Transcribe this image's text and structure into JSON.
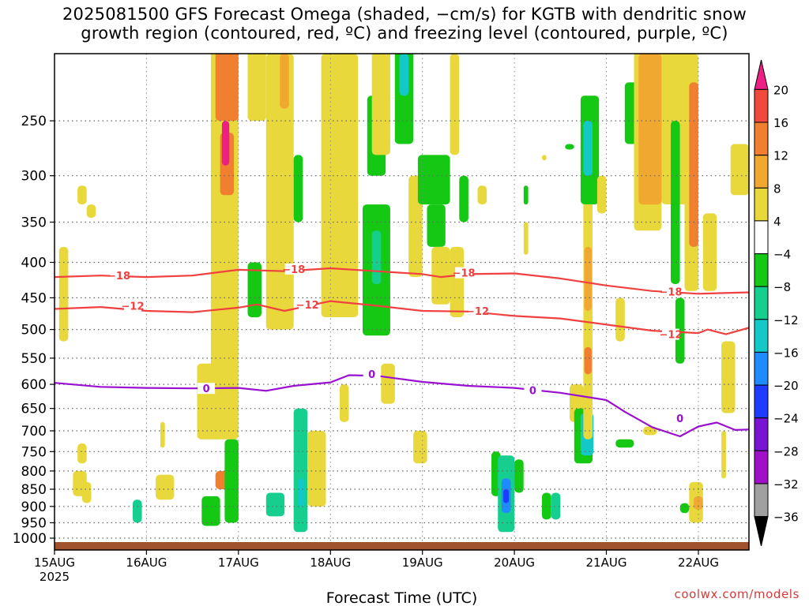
{
  "title_line1": "2025081500 GFS Forecast Omega (shaded, −cm/s) for KGTB with dendritic snow",
  "title_line2": "growth region (contoured, red, ºC) and freezing level (contoured, purple, ºC)",
  "credit": "coolwx.com/models",
  "chart_data": {
    "type": "heatmap",
    "xlabel": "Forecast Time (UTC)",
    "x_ticks": [
      "15AUG",
      "16AUG",
      "17AUG",
      "18AUG",
      "19AUG",
      "20AUG",
      "21AUG",
      "22AUG"
    ],
    "x_year_label": "2025",
    "x_range_days": [
      0,
      7.55
    ],
    "y_scale": "log-pressure (hPa)",
    "y_range_hpa": [
      1040,
      200
    ],
    "y_ticks": [
      250,
      300,
      350,
      400,
      450,
      500,
      550,
      600,
      650,
      700,
      750,
      800,
      850,
      900,
      950,
      1000
    ],
    "grid": true,
    "colorbar": {
      "labels": [
        "20",
        "16",
        "12",
        "8",
        "4",
        "−4",
        "−8",
        "−12",
        "−16",
        "−20",
        "−24",
        "−28",
        "−32",
        "−36"
      ],
      "colors": [
        "#ec1f84",
        "#f04a3c",
        "#f08030",
        "#f0a830",
        "#e8d83c",
        "#ffffff",
        "#14c814",
        "#16cf8e",
        "#14c8c8",
        "#1e8cff",
        "#1e3cff",
        "#7814d2",
        "#a010c8",
        "#a0a0a0",
        "#000000"
      ]
    },
    "ground_color": "#a0522d",
    "dgz_contours": [
      {
        "label": "−18",
        "color": "#f04040",
        "points": [
          [
            0,
            420
          ],
          [
            0.5,
            418
          ],
          [
            1,
            420
          ],
          [
            1.5,
            418
          ],
          [
            2,
            410
          ],
          [
            2.5,
            412
          ],
          [
            3,
            408
          ],
          [
            3.5,
            412
          ],
          [
            4,
            416
          ],
          [
            4.2,
            420
          ],
          [
            4.5,
            416
          ],
          [
            5,
            415
          ],
          [
            5.5,
            422
          ],
          [
            6,
            432
          ],
          [
            6.5,
            440
          ],
          [
            7,
            444
          ],
          [
            7.55,
            442
          ]
        ],
        "label_positions": [
          [
            0.7,
            418
          ],
          [
            2.6,
            409
          ],
          [
            4.45,
            414
          ],
          [
            6.7,
            441
          ]
        ]
      },
      {
        "label": "−12",
        "color": "#f04040",
        "points": [
          [
            0,
            467
          ],
          [
            0.5,
            464
          ],
          [
            1,
            470
          ],
          [
            1.5,
            472
          ],
          [
            2,
            465
          ],
          [
            2.2,
            460
          ],
          [
            2.5,
            470
          ],
          [
            3,
            455
          ],
          [
            3.5,
            462
          ],
          [
            4,
            470
          ],
          [
            4.5,
            471
          ],
          [
            5,
            478
          ],
          [
            5.5,
            482
          ],
          [
            6,
            492
          ],
          [
            6.5,
            502
          ],
          [
            7,
            506
          ],
          [
            7.1,
            500
          ],
          [
            7.3,
            508
          ],
          [
            7.55,
            497
          ]
        ],
        "label_positions": [
          [
            0.85,
            462
          ],
          [
            2.75,
            460
          ],
          [
            4.6,
            470
          ],
          [
            6.7,
            508
          ]
        ]
      }
    ],
    "freezing_level": {
      "label": "0",
      "color": "#9a10d0",
      "points": [
        [
          0,
          597
        ],
        [
          0.5,
          605
        ],
        [
          1,
          607
        ],
        [
          1.5,
          608
        ],
        [
          2,
          607
        ],
        [
          2.3,
          613
        ],
        [
          2.6,
          603
        ],
        [
          3,
          596
        ],
        [
          3.2,
          582
        ],
        [
          3.5,
          583
        ],
        [
          4,
          595
        ],
        [
          4.5,
          603
        ],
        [
          5,
          607
        ],
        [
          5.5,
          617
        ],
        [
          6,
          632
        ],
        [
          6.2,
          657
        ],
        [
          6.5,
          692
        ],
        [
          6.8,
          713
        ],
        [
          7,
          690
        ],
        [
          7.2,
          681
        ],
        [
          7.4,
          698
        ],
        [
          7.55,
          697
        ]
      ],
      "label_positions": [
        [
          1.65,
          608
        ],
        [
          3.45,
          580
        ],
        [
          5.2,
          612
        ],
        [
          6.8,
          671
        ]
      ]
    },
    "omega_regions": [
      {
        "t0": 0.05,
        "t1": 0.15,
        "p0": 380,
        "p1": 520,
        "v": 5
      },
      {
        "t0": 0.25,
        "t1": 0.35,
        "p0": 310,
        "p1": 330,
        "v": 5
      },
      {
        "t0": 0.35,
        "t1": 0.45,
        "p0": 330,
        "p1": 345,
        "v": 5
      },
      {
        "t0": 0.25,
        "t1": 0.35,
        "p0": 730,
        "p1": 780,
        "v": 5
      },
      {
        "t0": 0.3,
        "t1": 0.4,
        "p0": 830,
        "p1": 890,
        "v": 5
      },
      {
        "t0": 0.2,
        "t1": 0.35,
        "p0": 800,
        "p1": 870,
        "v": 5
      },
      {
        "t0": 0.85,
        "t1": 0.95,
        "p0": 880,
        "p1": 950,
        "v": -8
      },
      {
        "t0": 1.1,
        "t1": 1.3,
        "p0": 810,
        "p1": 880,
        "v": 5
      },
      {
        "t0": 1.15,
        "t1": 1.2,
        "p0": 680,
        "p1": 740,
        "v": 5
      },
      {
        "t0": 1.55,
        "t1": 1.8,
        "p0": 560,
        "p1": 720,
        "v": 5
      },
      {
        "t0": 1.7,
        "t1": 2.0,
        "p0": 100,
        "p1": 720,
        "v": 6
      },
      {
        "t0": 1.75,
        "t1": 2.0,
        "p0": 120,
        "p1": 250,
        "v": 12
      },
      {
        "t0": 1.8,
        "t1": 1.95,
        "p0": 260,
        "p1": 320,
        "v": 12
      },
      {
        "t0": 1.82,
        "t1": 1.9,
        "p0": 250,
        "p1": 290,
        "v": 20
      },
      {
        "t0": 1.75,
        "t1": 2.0,
        "p0": 800,
        "p1": 850,
        "v": 12
      },
      {
        "t0": 1.85,
        "t1": 2.0,
        "p0": 720,
        "p1": 950,
        "v": -6
      },
      {
        "t0": 1.6,
        "t1": 1.8,
        "p0": 870,
        "p1": 960,
        "v": -7
      },
      {
        "t0": 2.1,
        "t1": 2.25,
        "p0": 400,
        "p1": 480,
        "v": -6
      },
      {
        "t0": 2.1,
        "t1": 2.3,
        "p0": 150,
        "p1": 250,
        "v": 6
      },
      {
        "t0": 2.3,
        "t1": 2.6,
        "p0": 200,
        "p1": 500,
        "v": 5
      },
      {
        "t0": 2.45,
        "t1": 2.55,
        "p0": 200,
        "p1": 240,
        "v": 9
      },
      {
        "t0": 2.6,
        "t1": 2.7,
        "p0": 280,
        "p1": 350,
        "v": -6
      },
      {
        "t0": 2.6,
        "t1": 2.75,
        "p0": 650,
        "p1": 980,
        "v": -8
      },
      {
        "t0": 2.65,
        "t1": 2.72,
        "p0": 820,
        "p1": 900,
        "v": -13
      },
      {
        "t0": 2.3,
        "t1": 2.5,
        "p0": 860,
        "p1": 930,
        "v": -8
      },
      {
        "t0": 2.75,
        "t1": 2.95,
        "p0": 700,
        "p1": 900,
        "v": 5
      },
      {
        "t0": 2.9,
        "t1": 3.3,
        "p0": 200,
        "p1": 480,
        "v": 5
      },
      {
        "t0": 3.1,
        "t1": 3.2,
        "p0": 600,
        "p1": 680,
        "v": 5
      },
      {
        "t0": 3.4,
        "t1": 3.6,
        "p0": 230,
        "p1": 300,
        "v": -6
      },
      {
        "t0": 3.35,
        "t1": 3.65,
        "p0": 330,
        "p1": 510,
        "v": -7
      },
      {
        "t0": 3.45,
        "t1": 3.55,
        "p0": 360,
        "p1": 430,
        "v": -11
      },
      {
        "t0": 3.45,
        "t1": 3.65,
        "p0": 180,
        "p1": 280,
        "v": 5
      },
      {
        "t0": 3.55,
        "t1": 3.7,
        "p0": 560,
        "p1": 640,
        "v": 5
      },
      {
        "t0": 3.7,
        "t1": 3.9,
        "p0": 180,
        "p1": 270,
        "v": -7
      },
      {
        "t0": 3.75,
        "t1": 3.85,
        "p0": 200,
        "p1": 230,
        "v": -13
      },
      {
        "t0": 3.85,
        "t1": 4.0,
        "p0": 300,
        "p1": 420,
        "v": 5
      },
      {
        "t0": 3.95,
        "t1": 4.3,
        "p0": 280,
        "p1": 330,
        "v": -7
      },
      {
        "t0": 4.05,
        "t1": 4.25,
        "p0": 330,
        "p1": 380,
        "v": -7
      },
      {
        "t0": 4.1,
        "t1": 4.3,
        "p0": 380,
        "p1": 460,
        "v": 5
      },
      {
        "t0": 3.9,
        "t1": 4.05,
        "p0": 700,
        "p1": 780,
        "v": 5
      },
      {
        "t0": 4.3,
        "t1": 4.4,
        "p0": 200,
        "p1": 280,
        "v": 5
      },
      {
        "t0": 4.4,
        "t1": 4.5,
        "p0": 300,
        "p1": 350,
        "v": -6
      },
      {
        "t0": 4.3,
        "t1": 4.45,
        "p0": 380,
        "p1": 480,
        "v": 5
      },
      {
        "t0": 4.6,
        "t1": 4.7,
        "p0": 310,
        "p1": 330,
        "v": 5
      },
      {
        "t0": 4.75,
        "t1": 4.85,
        "p0": 750,
        "p1": 870,
        "v": -7
      },
      {
        "t0": 4.82,
        "t1": 5.0,
        "p0": 760,
        "p1": 980,
        "v": -10
      },
      {
        "t0": 4.86,
        "t1": 4.96,
        "p0": 820,
        "p1": 920,
        "v": -18
      },
      {
        "t0": 4.88,
        "t1": 4.94,
        "p0": 850,
        "p1": 890,
        "v": -22
      },
      {
        "t0": 5.0,
        "t1": 5.1,
        "p0": 770,
        "p1": 860,
        "v": -6
      },
      {
        "t0": 5.1,
        "t1": 5.15,
        "p0": 350,
        "p1": 390,
        "v": 5
      },
      {
        "t0": 5.1,
        "t1": 5.15,
        "p0": 310,
        "p1": 330,
        "v": -6
      },
      {
        "t0": 5.3,
        "t1": 5.35,
        "p0": 280,
        "p1": 285,
        "v": 5
      },
      {
        "t0": 5.3,
        "t1": 5.4,
        "p0": 860,
        "p1": 940,
        "v": -6
      },
      {
        "t0": 5.4,
        "t1": 5.5,
        "p0": 860,
        "p1": 940,
        "v": -8
      },
      {
        "t0": 5.55,
        "t1": 5.65,
        "p0": 270,
        "p1": 275,
        "v": -6
      },
      {
        "t0": 5.6,
        "t1": 5.75,
        "p0": 600,
        "p1": 680,
        "v": 5
      },
      {
        "t0": 5.65,
        "t1": 5.85,
        "p0": 650,
        "p1": 780,
        "v": -7
      },
      {
        "t0": 5.72,
        "t1": 5.86,
        "p0": 660,
        "p1": 760,
        "v": -12
      },
      {
        "t0": 5.75,
        "t1": 5.85,
        "p0": 300,
        "p1": 720,
        "v": 5
      },
      {
        "t0": 5.76,
        "t1": 5.84,
        "p0": 380,
        "p1": 470,
        "v": 10
      },
      {
        "t0": 5.76,
        "t1": 5.84,
        "p0": 530,
        "p1": 580,
        "v": 15
      },
      {
        "t0": 5.72,
        "t1": 5.92,
        "p0": 230,
        "p1": 330,
        "v": -7
      },
      {
        "t0": 5.75,
        "t1": 5.85,
        "p0": 250,
        "p1": 300,
        "v": -12
      },
      {
        "t0": 5.9,
        "t1": 6.0,
        "p0": 300,
        "p1": 340,
        "v": 5
      },
      {
        "t0": 6.1,
        "t1": 6.2,
        "p0": 450,
        "p1": 520,
        "v": 5
      },
      {
        "t0": 6.1,
        "t1": 6.3,
        "p0": 720,
        "p1": 740,
        "v": -6
      },
      {
        "t0": 6.4,
        "t1": 6.55,
        "p0": 690,
        "p1": 710,
        "v": 5
      },
      {
        "t0": 6.2,
        "t1": 6.5,
        "p0": 220,
        "p1": 270,
        "v": -7
      },
      {
        "t0": 6.3,
        "t1": 6.6,
        "p0": 180,
        "p1": 360,
        "v": 5
      },
      {
        "t0": 6.6,
        "t1": 6.9,
        "p0": 150,
        "p1": 330,
        "v": 5
      },
      {
        "t0": 6.35,
        "t1": 6.6,
        "p0": 200,
        "p1": 330,
        "v": 8
      },
      {
        "t0": 6.7,
        "t1": 6.8,
        "p0": 250,
        "p1": 430,
        "v": -7
      },
      {
        "t0": 6.75,
        "t1": 6.85,
        "p0": 450,
        "p1": 560,
        "v": -7
      },
      {
        "t0": 6.85,
        "t1": 7.0,
        "p0": 200,
        "p1": 440,
        "v": 5
      },
      {
        "t0": 6.9,
        "t1": 7.0,
        "p0": 220,
        "p1": 380,
        "v": 13
      },
      {
        "t0": 7.05,
        "t1": 7.2,
        "p0": 340,
        "p1": 440,
        "v": 5
      },
      {
        "t0": 7.35,
        "t1": 7.55,
        "p0": 270,
        "p1": 320,
        "v": 5
      },
      {
        "t0": 7.25,
        "t1": 7.4,
        "p0": 520,
        "p1": 660,
        "v": 5
      },
      {
        "t0": 6.9,
        "t1": 7.05,
        "p0": 830,
        "p1": 950,
        "v": 5
      },
      {
        "t0": 6.95,
        "t1": 7.05,
        "p0": 870,
        "p1": 910,
        "v": 10
      },
      {
        "t0": 6.8,
        "t1": 6.9,
        "p0": 890,
        "p1": 920,
        "v": -6
      },
      {
        "t0": 7.25,
        "t1": 7.3,
        "p0": 700,
        "p1": 820,
        "v": 5
      }
    ]
  }
}
